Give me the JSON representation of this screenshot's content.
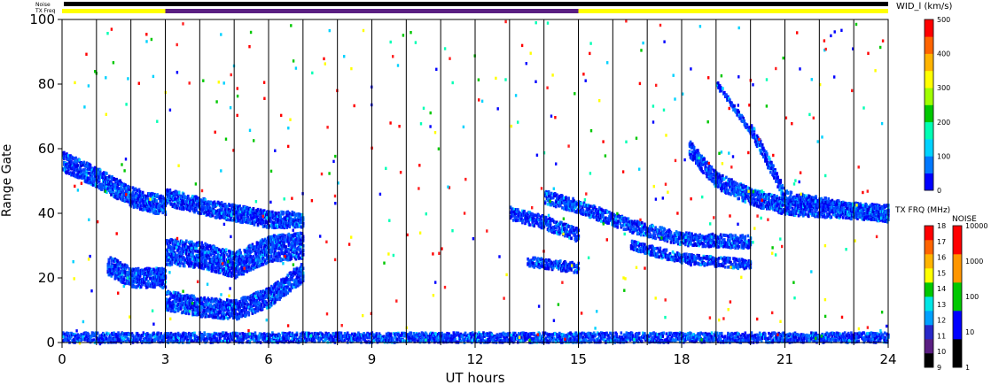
{
  "chart_data": {
    "type": "heatmap",
    "title": "",
    "xlabel": "UT hours",
    "ylabel": "Range Gate",
    "xlim": [
      0,
      24
    ],
    "ylim": [
      0,
      100
    ],
    "x_ticks": [
      "0",
      "3",
      "6",
      "9",
      "12",
      "15",
      "18",
      "21",
      "24"
    ],
    "y_ticks": [
      "0",
      "20",
      "40",
      "60",
      "80",
      "100"
    ],
    "vertical_scan_lines_every_hours": 1,
    "status_bars": {
      "noise_label": "Noise",
      "txfreq_label": "TX Freq",
      "noise_color": "#000000",
      "txfreq_segments": [
        {
          "start": 0,
          "end": 3,
          "color": "#ffff00"
        },
        {
          "start": 3,
          "end": 15,
          "color": "#5a1e82"
        },
        {
          "start": 15,
          "end": 24,
          "color": "#ffff00"
        }
      ]
    },
    "colorbar_width": {
      "title": "WID_l (km/s)",
      "ticks": [
        "0",
        "100",
        "200",
        "300",
        "400",
        "500"
      ],
      "range": [
        0,
        500
      ],
      "colors": [
        "#0000ff",
        "#0078ff",
        "#00d2ff",
        "#00ffb4",
        "#00c800",
        "#a0ff00",
        "#ffff00",
        "#ffb400",
        "#ff6400",
        "#ff0000"
      ]
    },
    "colorbar_freq": {
      "title": "TX FRQ (MHz)",
      "ticks": [
        "9",
        "10",
        "11",
        "12",
        "13",
        "14",
        "15",
        "16",
        "17",
        "18"
      ],
      "colors": [
        "#000000",
        "#5a1e82",
        "#2828c8",
        "#00a0ff",
        "#00e6e6",
        "#00c800",
        "#ffff00",
        "#ffb400",
        "#ff6400",
        "#ff0000"
      ]
    },
    "colorbar_noise": {
      "title": "NOISE",
      "ticks": [
        "1",
        "10",
        "100",
        "1000",
        "10000"
      ],
      "colors": [
        "#000000",
        "#0000ff",
        "#00c800",
        "#ff9600",
        "#ff0000"
      ]
    },
    "bands": [
      {
        "name": "ground scatter",
        "points": [
          [
            0,
            1.5
          ],
          [
            24,
            1.5
          ]
        ],
        "width": 3
      },
      {
        "points": [
          [
            0,
            56
          ],
          [
            1,
            51
          ],
          [
            2,
            45
          ],
          [
            3,
            42
          ]
        ],
        "width": 6
      },
      {
        "points": [
          [
            1.3,
            24
          ],
          [
            2,
            20
          ],
          [
            3,
            20
          ]
        ],
        "width": 6
      },
      {
        "points": [
          [
            3,
            45
          ],
          [
            4.5,
            41
          ],
          [
            6,
            38
          ],
          [
            7,
            38
          ]
        ],
        "width": 5
      },
      {
        "points": [
          [
            3,
            28
          ],
          [
            4,
            27
          ],
          [
            5,
            24
          ],
          [
            6,
            29
          ],
          [
            7,
            30
          ]
        ],
        "width": 8
      },
      {
        "points": [
          [
            3,
            13
          ],
          [
            4,
            11
          ],
          [
            5,
            10
          ],
          [
            6,
            14
          ],
          [
            7,
            22
          ]
        ],
        "width": 6
      },
      {
        "points": [
          [
            13,
            40
          ],
          [
            14,
            37
          ],
          [
            15,
            33
          ]
        ],
        "width": 4
      },
      {
        "points": [
          [
            13.5,
            25
          ],
          [
            15,
            23
          ]
        ],
        "width": 3
      },
      {
        "points": [
          [
            14,
            45
          ],
          [
            15,
            42
          ]
        ],
        "width": 4
      },
      {
        "points": [
          [
            15,
            42
          ],
          [
            16.5,
            36
          ],
          [
            18,
            32
          ],
          [
            20,
            31
          ]
        ],
        "width": 4
      },
      {
        "points": [
          [
            16.5,
            30
          ],
          [
            18,
            26
          ],
          [
            20,
            24
          ]
        ],
        "width": 3
      },
      {
        "points": [
          [
            18.2,
            60
          ],
          [
            19,
            50
          ],
          [
            20,
            45
          ],
          [
            21,
            42
          ],
          [
            24,
            40
          ]
        ],
        "width": 5
      },
      {
        "points": [
          [
            19,
            80
          ],
          [
            20,
            65
          ]
        ],
        "width": 2
      },
      {
        "points": [
          [
            20,
            66
          ],
          [
            21,
            45
          ],
          [
            24,
            39
          ]
        ],
        "width": 4
      }
    ]
  }
}
